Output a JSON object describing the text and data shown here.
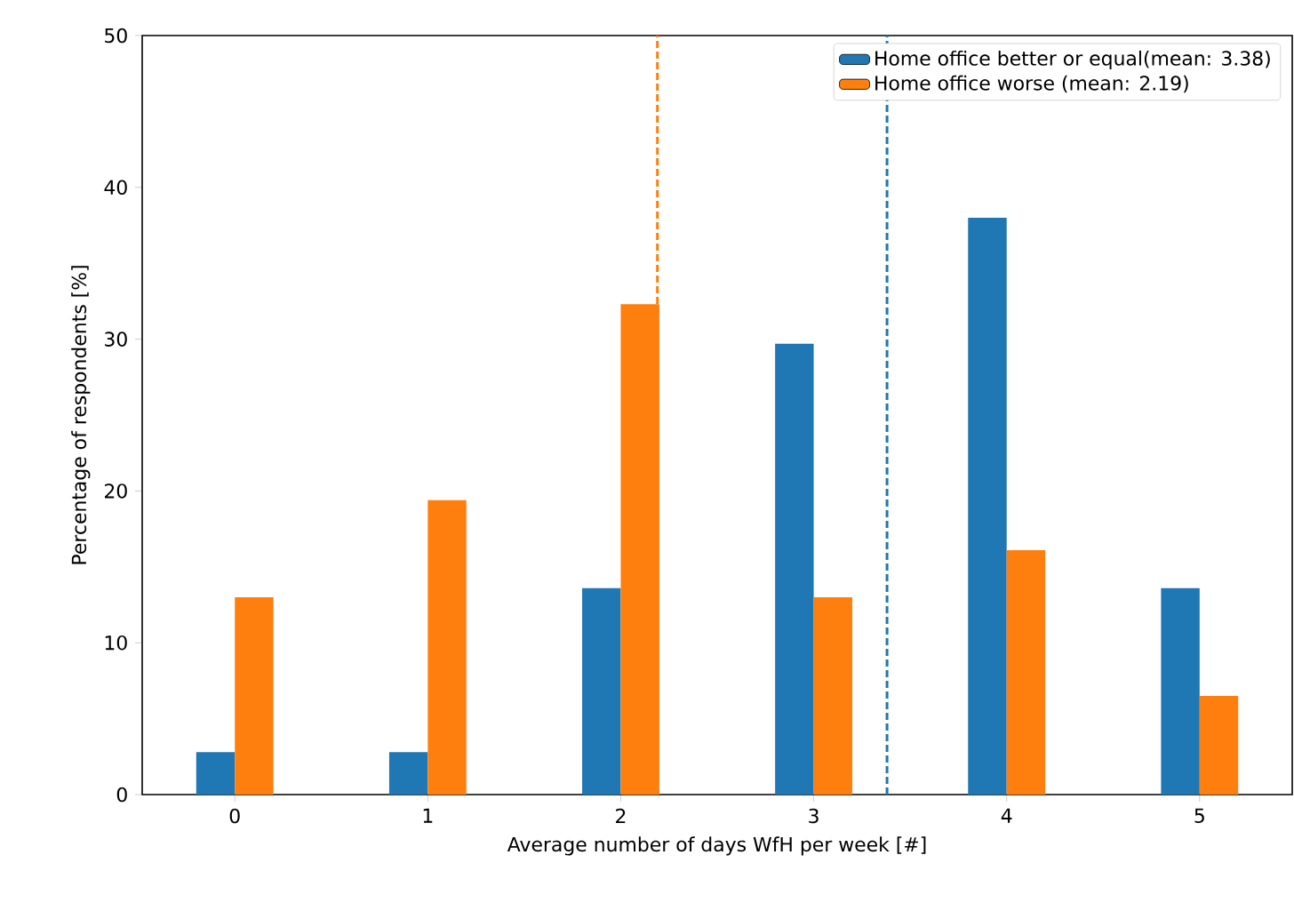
{
  "chart_data": {
    "type": "bar",
    "xlabel": "Average number of days WfH per week [#]",
    "ylabel": "Percentage of respondents [%]",
    "x": [
      0,
      1,
      2,
      3,
      4,
      5
    ],
    "series": [
      {
        "name": "Home office better or equal(mean: 3.38)",
        "color": "#1f77b4",
        "values": [
          2.8,
          2.8,
          13.6,
          29.7,
          38.0,
          13.6
        ]
      },
      {
        "name": "Home office worse (mean: 2.19)",
        "color": "#ff7f0e",
        "values": [
          13.0,
          19.4,
          32.3,
          13.0,
          16.1,
          6.5
        ]
      }
    ],
    "xlim": [
      -0.48,
      5.48
    ],
    "ylim": [
      0,
      50
    ],
    "xticks": [
      0,
      1,
      2,
      3,
      4,
      5
    ],
    "yticks": [
      0,
      10,
      20,
      30,
      40,
      50
    ],
    "ref_lines": [
      {
        "axis": "x",
        "value": 3.38,
        "color": "#1f77b4",
        "line_style": "dashed"
      },
      {
        "axis": "x",
        "value": 2.19,
        "color": "#ff7f0e",
        "line_style": "dashed"
      }
    ],
    "legend": "top right",
    "grid": false
  }
}
